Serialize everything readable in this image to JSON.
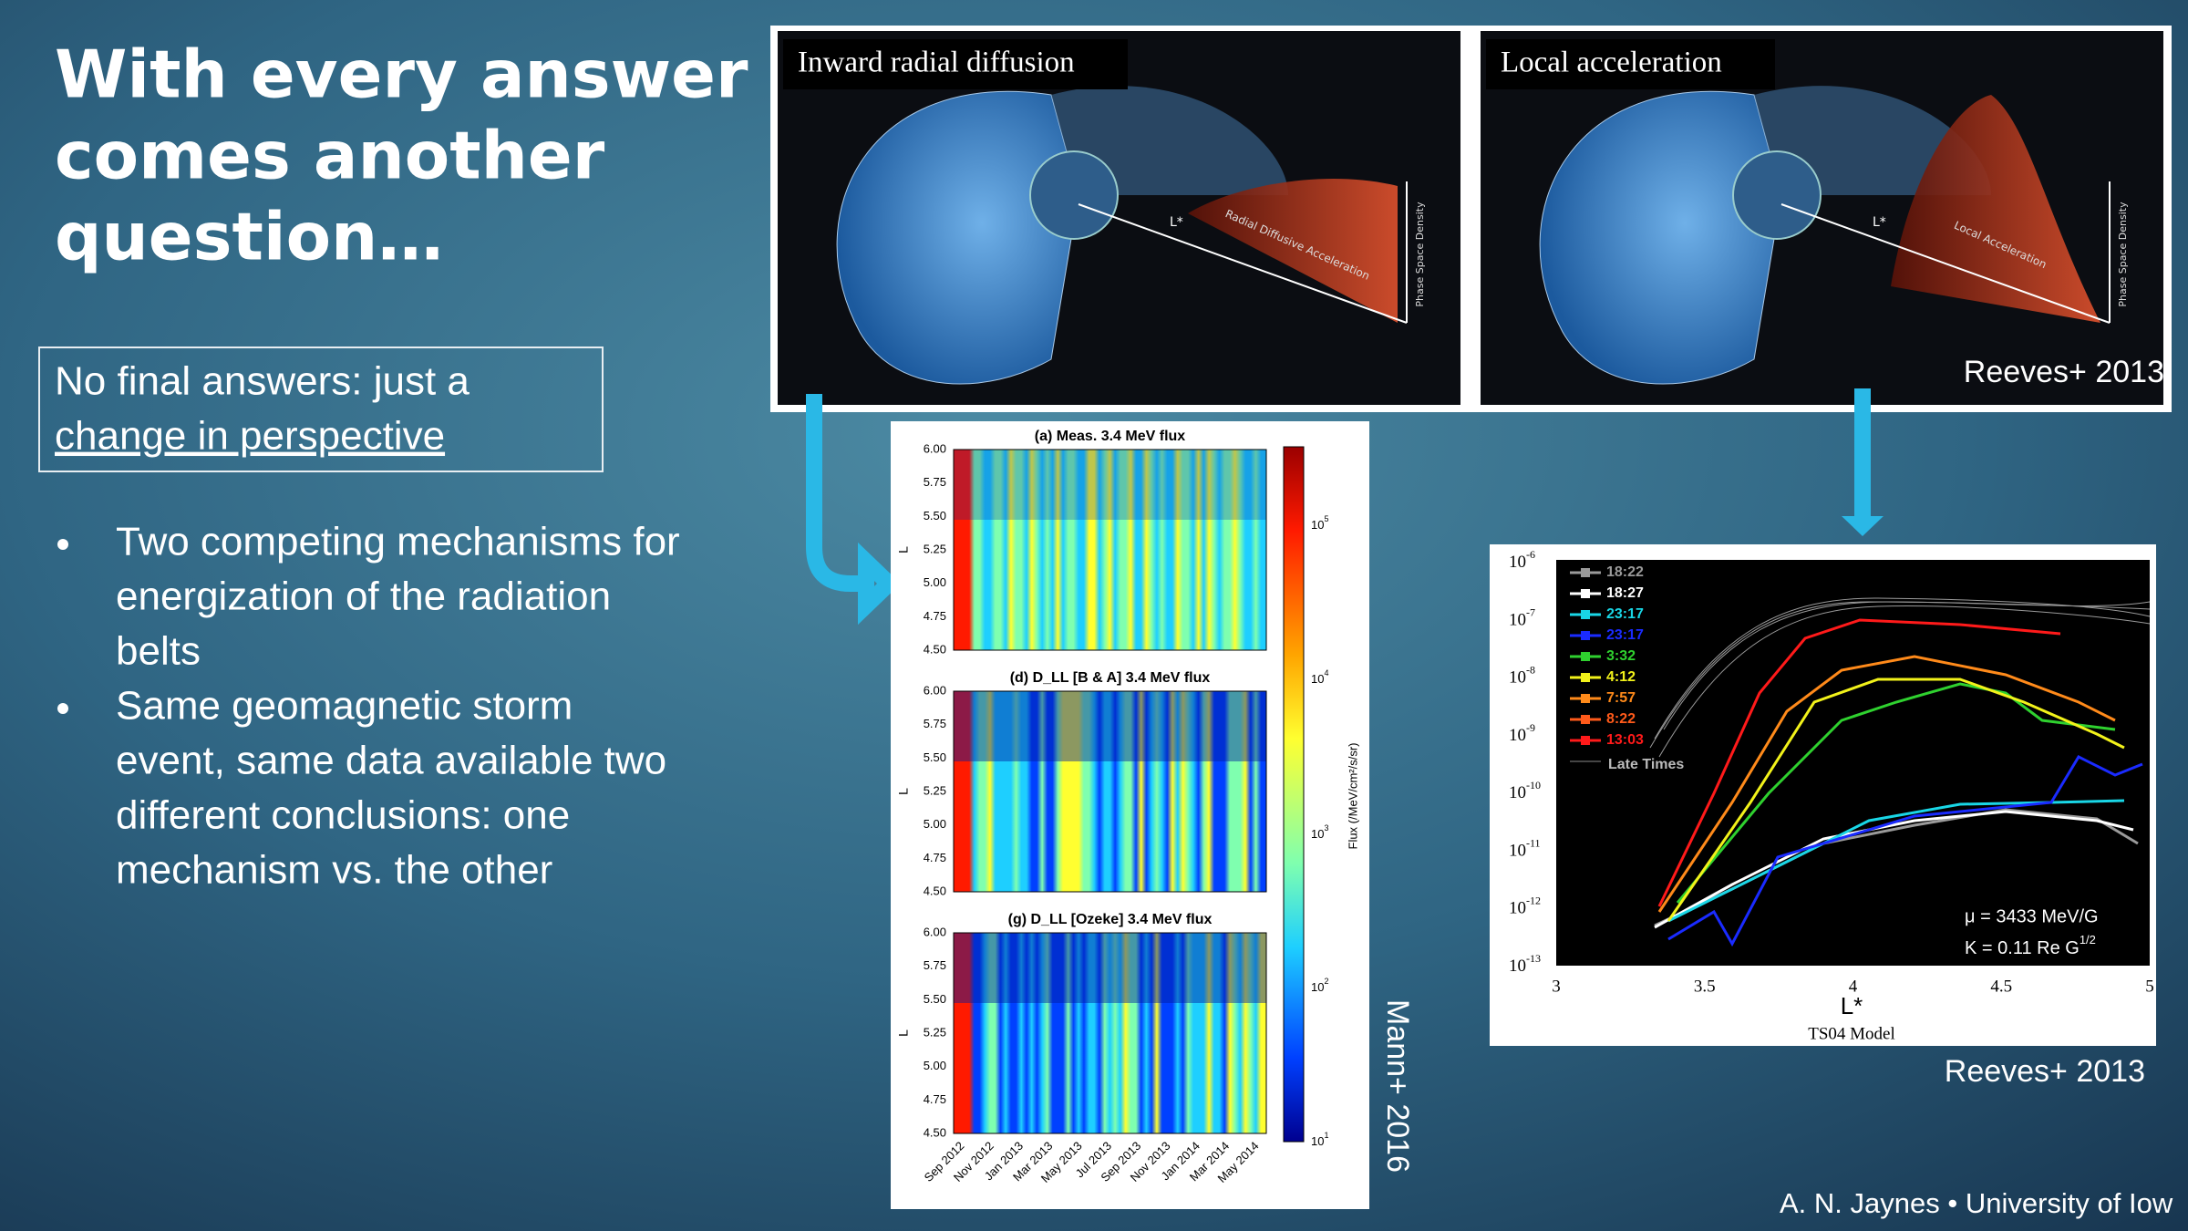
{
  "slide": {
    "title": {
      "lines": [
        "With every answer",
        "comes another",
        "question…"
      ]
    },
    "callout": {
      "lines": [
        "No final answers: just a",
        "change in perspective"
      ]
    },
    "bullets": [
      {
        "lines": [
          "Two competing mechanisms for",
          "energization of the radiation",
          "belts"
        ]
      },
      {
        "lines": [
          "Same geomagnetic storm",
          "event, same data available two",
          "different conclusions: one",
          "mechanism vs. the other"
        ]
      }
    ],
    "top_figure": {
      "panels": [
        {
          "label": "Inward radial diffusion",
          "annotation": "Radial Diffusive Acceleration",
          "axis": "Phase Space Density",
          "lstar": "L*"
        },
        {
          "label": "Local acceleration",
          "annotation": "Local Acceleration",
          "axis": "Phase Space Density",
          "lstar": "L*"
        }
      ],
      "credit": "Reeves+ 2013"
    },
    "flux_figure": {
      "panels": [
        {
          "title": "(a) Meas. 3.4 MeV flux"
        },
        {
          "title": "(d) D_LL [B & A] 3.4 MeV flux"
        },
        {
          "title": "(g) D_LL [Ozeke] 3.4 MeV flux"
        }
      ],
      "y_label": "L",
      "y_ticks": [
        "6.00",
        "5.75",
        "5.50",
        "5.25",
        "5.00",
        "4.75",
        "4.50"
      ],
      "x_ticks": [
        "Sep 2012",
        "Nov 2012",
        "Jan 2013",
        "Mar 2013",
        "May 2013",
        "Jul 2013",
        "Sep 2013",
        "Nov 2013",
        "Jan 2014",
        "Mar 2014",
        "May 2014"
      ],
      "colorbar_ticks": [
        {
          "base": "10",
          "exp": "5"
        },
        {
          "base": "10",
          "exp": "4"
        },
        {
          "base": "10",
          "exp": "3"
        },
        {
          "base": "10",
          "exp": "2"
        },
        {
          "base": "10",
          "exp": "1"
        }
      ],
      "colorbar_label": "Flux (/MeV/cm²/s/sr)",
      "credit": "Mann+ 2016"
    },
    "psd_figure": {
      "y_ticks": [
        {
          "base": "10",
          "exp": "-6"
        },
        {
          "base": "10",
          "exp": "-7"
        },
        {
          "base": "10",
          "exp": "-8"
        },
        {
          "base": "10",
          "exp": "-9"
        },
        {
          "base": "10",
          "exp": "-10"
        },
        {
          "base": "10",
          "exp": "-11"
        },
        {
          "base": "10",
          "exp": "-12"
        },
        {
          "base": "10",
          "exp": "-13"
        }
      ],
      "x_ticks": [
        "3",
        "3.5",
        "4",
        "4.5",
        "5"
      ],
      "x_label": "L*",
      "model": "TS04 Model",
      "legend": [
        {
          "name": "18:22",
          "color": "#9a9a9a"
        },
        {
          "name": "18:27",
          "color": "#ffffff"
        },
        {
          "name": "23:17",
          "color": "#19d6e6"
        },
        {
          "name": "23:17",
          "color": "#1a2bff"
        },
        {
          "name": "3:32",
          "color": "#2fd12f"
        },
        {
          "name": "4:12",
          "color": "#f2f21a"
        },
        {
          "name": "7:57",
          "color": "#ff8a1a"
        },
        {
          "name": "8:22",
          "color": "#ff5a1a"
        },
        {
          "name": "13:03",
          "color": "#ff1a1a"
        },
        {
          "name": "Late Times",
          "color": "#8a8a8a"
        }
      ],
      "mu": "μ = 3433  MeV/G",
      "k": "K = 0.11 Re G",
      "k_exp": "1/2",
      "credit": "Reeves+ 2013"
    },
    "footer": "A. N. Jaynes • University of Iow"
  }
}
